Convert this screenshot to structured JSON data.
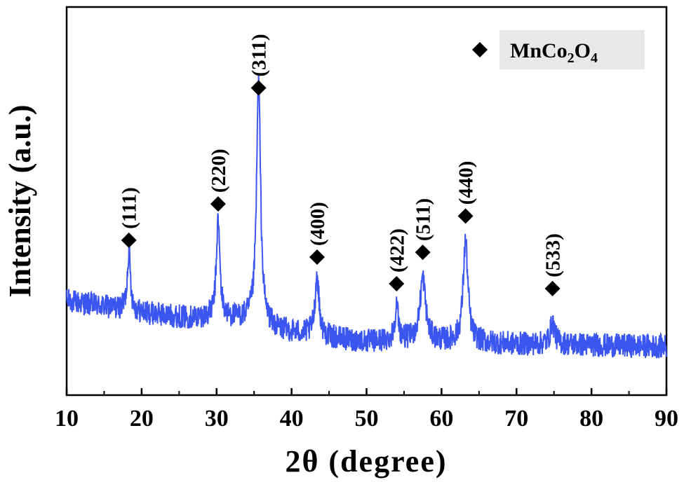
{
  "chart_data": {
    "type": "line",
    "xlabel": "2θ (degree)",
    "ylabel": "Intensity (a.u.)",
    "xlim": [
      10,
      90
    ],
    "x_ticks": [
      10,
      20,
      30,
      40,
      50,
      60,
      70,
      80,
      90
    ],
    "y_ticks_shown": false,
    "grid": false,
    "legend": {
      "position": "top-right",
      "marker": "diamond",
      "label_main": "MnCo",
      "sub1": "2",
      "mid": "O",
      "sub2": "4"
    },
    "series": [
      {
        "name": "MnCo2O4",
        "color": "#3b55f0",
        "baseline": [
          [
            10,
            0.22
          ],
          [
            14,
            0.2
          ],
          [
            20,
            0.17
          ],
          [
            26,
            0.15
          ],
          [
            30,
            0.15
          ],
          [
            34,
            0.14
          ],
          [
            38,
            0.1
          ],
          [
            44,
            0.07
          ],
          [
            50,
            0.05
          ],
          [
            56,
            0.055
          ],
          [
            60,
            0.05
          ],
          [
            66,
            0.045
          ],
          [
            70,
            0.04
          ],
          [
            76,
            0.04
          ],
          [
            82,
            0.035
          ],
          [
            90,
            0.03
          ]
        ],
        "peaks": [
          {
            "x": 18.3,
            "height": 0.25,
            "width": 0.25
          },
          {
            "x": 30.2,
            "height": 0.4,
            "width": 0.28
          },
          {
            "x": 35.6,
            "height": 1.0,
            "width": 0.32
          },
          {
            "x": 43.4,
            "height": 0.25,
            "width": 0.32
          },
          {
            "x": 54.0,
            "height": 0.14,
            "width": 0.3
          },
          {
            "x": 57.5,
            "height": 0.26,
            "width": 0.45
          },
          {
            "x": 63.2,
            "height": 0.42,
            "width": 0.38
          },
          {
            "x": 74.8,
            "height": 0.09,
            "width": 0.35
          }
        ],
        "noise_amplitude": 0.05
      }
    ],
    "annotations": [
      {
        "label": "(111)",
        "x": 18.3,
        "marker_level": 0.47
      },
      {
        "label": "(220)",
        "x": 30.2,
        "marker_level": 0.62
      },
      {
        "label": "(311)",
        "x": 35.6,
        "marker_level": 1.1
      },
      {
        "label": "(400)",
        "x": 43.4,
        "marker_level": 0.4
      },
      {
        "label": "(422)",
        "x": 54.0,
        "marker_level": 0.29
      },
      {
        "label": "(511)",
        "x": 57.5,
        "marker_level": 0.42
      },
      {
        "label": "(440)",
        "x": 63.2,
        "marker_level": 0.57
      },
      {
        "label": "(533)",
        "x": 74.8,
        "marker_level": 0.27
      }
    ]
  }
}
